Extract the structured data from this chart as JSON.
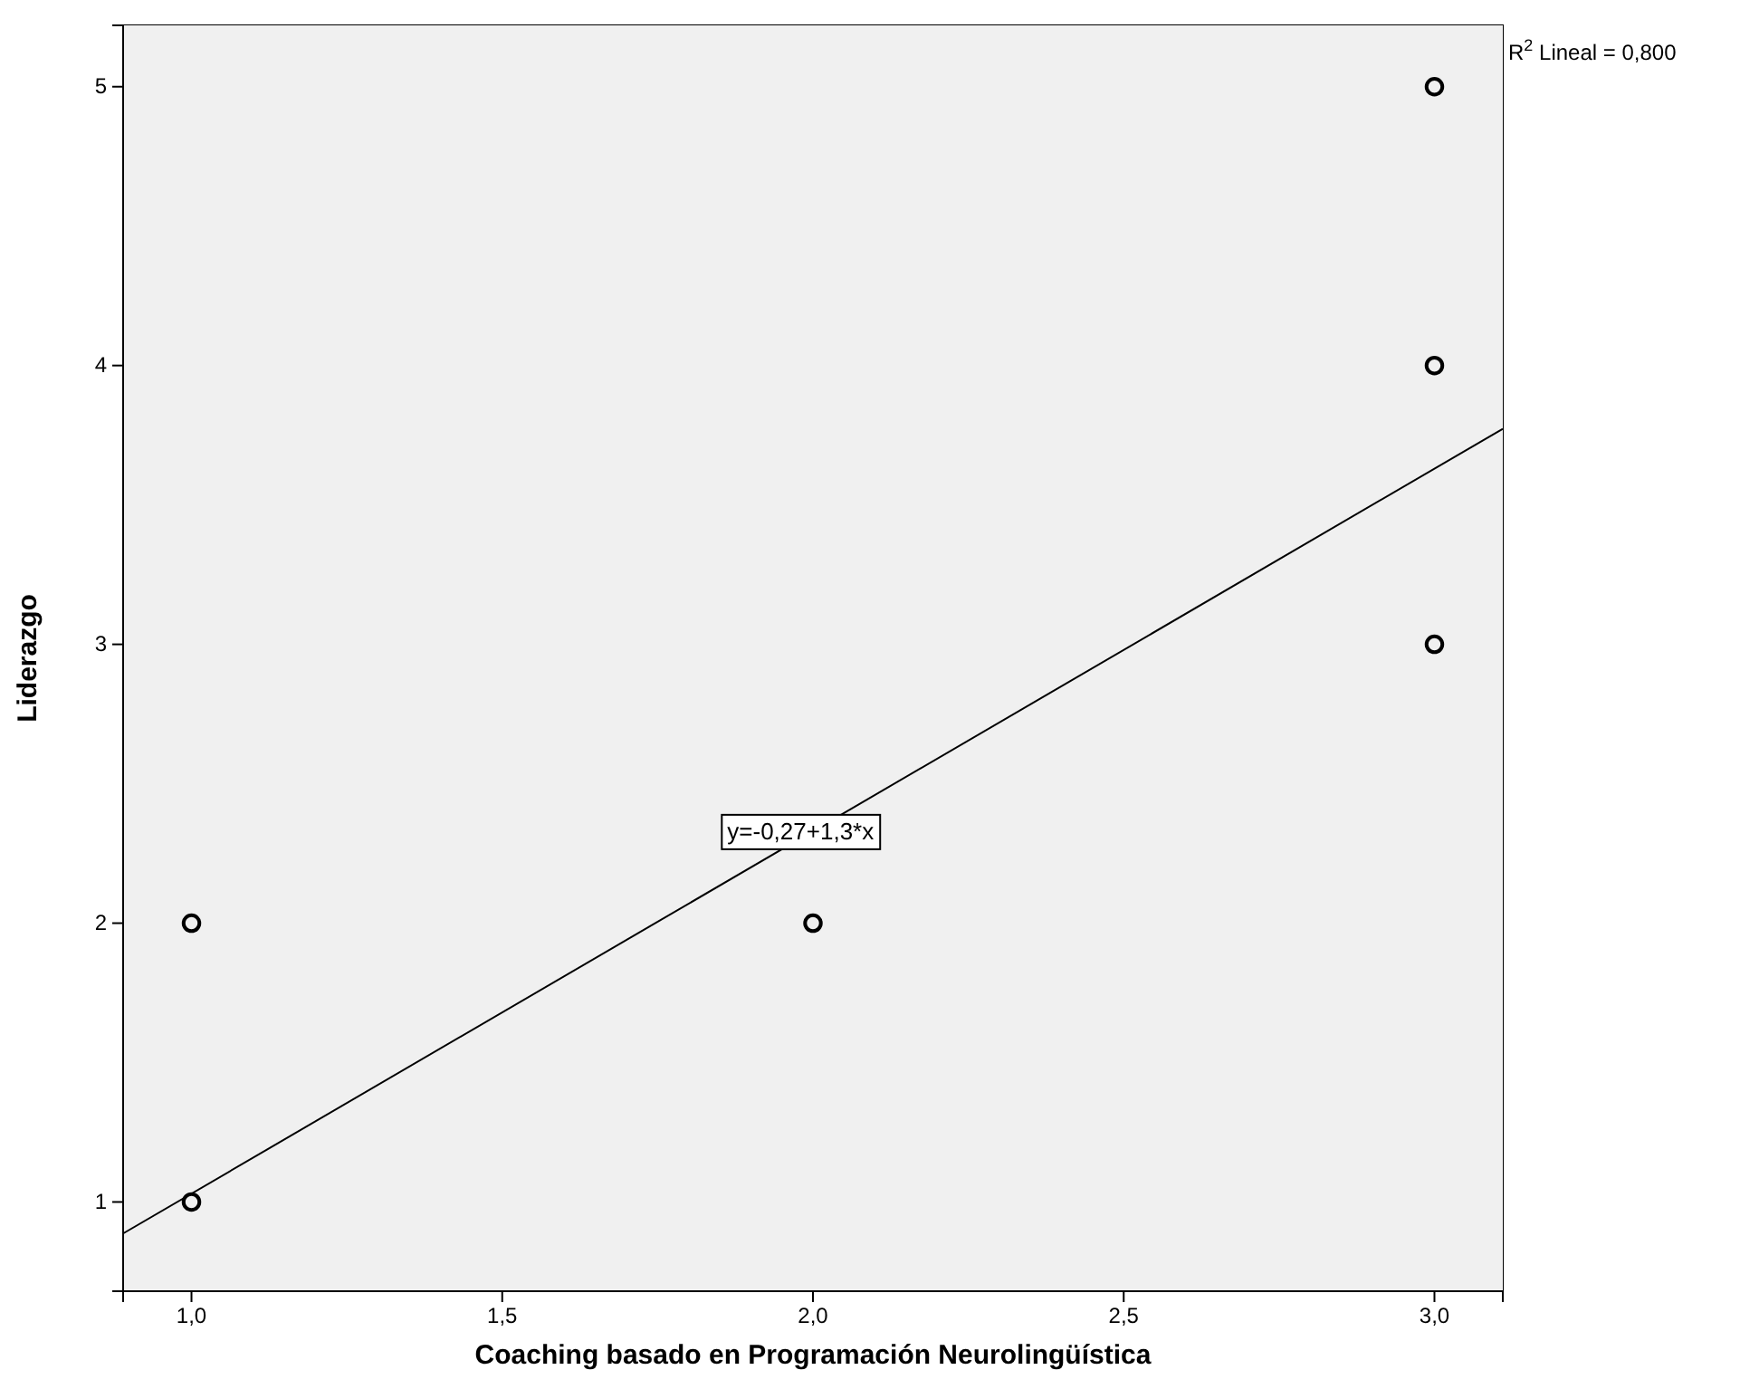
{
  "chart_data": {
    "type": "scatter",
    "xlabel": "Coaching basado en Programación Neurolingüística",
    "ylabel": "Liderazgo",
    "xlim": [
      0.89,
      3.11
    ],
    "ylim": [
      0.68,
      5.22
    ],
    "xticks": [
      {
        "value": 1,
        "label": "1,0"
      },
      {
        "value": 1.5,
        "label": "1,5"
      },
      {
        "value": 2,
        "label": "2,0"
      },
      {
        "value": 2.5,
        "label": "2,5"
      },
      {
        "value": 3,
        "label": "3,0"
      }
    ],
    "yticks": [
      1,
      2,
      3,
      4,
      5
    ],
    "grid": false,
    "series": [
      {
        "color": "#000000",
        "marker": "circle",
        "x": [
          1,
          1,
          2,
          3,
          3,
          3
        ],
        "values": [
          1,
          2,
          2,
          3,
          4,
          5
        ]
      },
      {
        "type": "line",
        "color": "#000000",
        "marker": "none",
        "line_style": "solid",
        "x": [
          0.89,
          3.11
        ],
        "values": [
          0.887,
          3.773
        ]
      }
    ],
    "annotations": [
      {
        "text": "y=-0,27+1,3*x",
        "x": 1.98,
        "y": 2.32
      },
      "R$^{2}$ Lineal = 0,800"
    ]
  }
}
